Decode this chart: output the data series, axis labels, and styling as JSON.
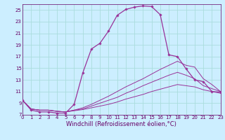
{
  "xlabel": "Windchill (Refroidissement éolien,°C)",
  "bg_color": "#cceeff",
  "line_color": "#993399",
  "grid_color": "#aadddd",
  "series": [
    {
      "x": [
        0,
        1,
        2,
        3,
        4,
        5,
        6,
        7,
        8,
        9,
        10,
        11,
        12,
        13,
        14,
        15,
        16,
        17,
        18,
        19,
        20,
        21,
        22,
        23
      ],
      "y": [
        9.5,
        7.8,
        7.5,
        7.5,
        7.3,
        7.3,
        8.8,
        14.2,
        18.3,
        19.3,
        21.4,
        24.1,
        25.1,
        25.5,
        25.7,
        25.6,
        24.2,
        17.3,
        17.0,
        14.9,
        13.0,
        12.7,
        11.0,
        10.9
      ],
      "has_markers": true
    },
    {
      "x": [
        0,
        1,
        2,
        3,
        4,
        5,
        6,
        7,
        8,
        9,
        10,
        11,
        12,
        13,
        14,
        15,
        16,
        17,
        18,
        19,
        20,
        21,
        22,
        23
      ],
      "y": [
        9.5,
        8.0,
        7.8,
        7.8,
        7.6,
        7.5,
        7.8,
        8.2,
        8.8,
        9.5,
        10.2,
        11.0,
        11.8,
        12.5,
        13.2,
        14.0,
        14.8,
        15.5,
        16.2,
        15.5,
        15.2,
        13.2,
        12.2,
        11.0
      ],
      "has_markers": false
    },
    {
      "x": [
        0,
        1,
        2,
        3,
        4,
        5,
        6,
        7,
        8,
        9,
        10,
        11,
        12,
        13,
        14,
        15,
        16,
        17,
        18,
        19,
        20,
        21,
        22,
        23
      ],
      "y": [
        9.5,
        8.0,
        7.8,
        7.8,
        7.6,
        7.5,
        7.8,
        8.0,
        8.5,
        9.0,
        9.5,
        10.0,
        10.7,
        11.3,
        12.0,
        12.6,
        13.2,
        13.8,
        14.3,
        13.8,
        13.2,
        12.0,
        11.5,
        11.0
      ],
      "has_markers": false
    },
    {
      "x": [
        0,
        1,
        2,
        3,
        4,
        5,
        6,
        7,
        8,
        9,
        10,
        11,
        12,
        13,
        14,
        15,
        16,
        17,
        18,
        19,
        20,
        21,
        22,
        23
      ],
      "y": [
        9.5,
        8.0,
        7.8,
        7.8,
        7.6,
        7.5,
        7.7,
        7.9,
        8.2,
        8.5,
        8.8,
        9.2,
        9.7,
        10.1,
        10.5,
        11.0,
        11.4,
        11.8,
        12.2,
        12.0,
        11.8,
        11.3,
        11.0,
        10.7
      ],
      "has_markers": false
    }
  ],
  "xlim": [
    0,
    23
  ],
  "ylim": [
    7,
    26
  ],
  "yticks": [
    7,
    9,
    11,
    13,
    15,
    17,
    19,
    21,
    23,
    25
  ],
  "xticks": [
    0,
    1,
    2,
    3,
    4,
    5,
    6,
    7,
    8,
    9,
    10,
    11,
    12,
    13,
    14,
    15,
    16,
    17,
    18,
    19,
    20,
    21,
    22,
    23
  ],
  "font_color": "#660066",
  "tick_fontsize": 5.0,
  "label_fontsize": 6.0
}
